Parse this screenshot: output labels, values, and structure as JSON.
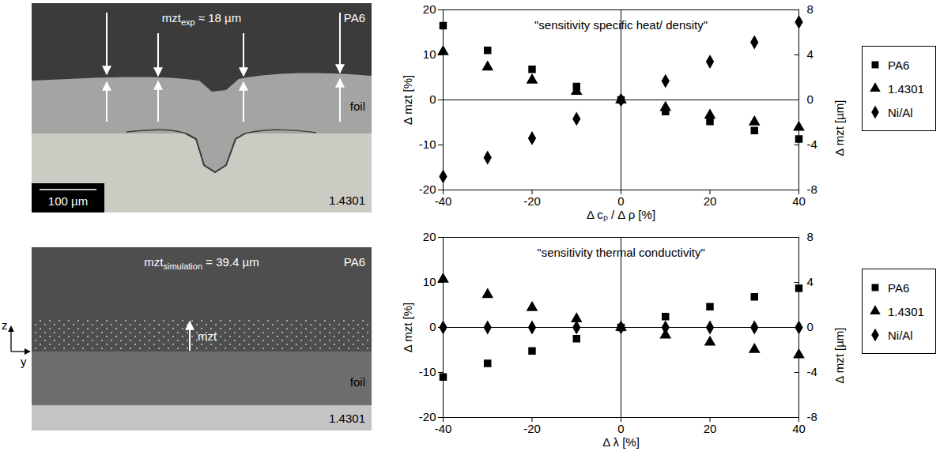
{
  "micrograph": {
    "annotation": {
      "base": "mzt",
      "sub": "exp",
      "rest": " ≈ 18 µm"
    },
    "layers": {
      "top": "PA6",
      "middle": "foil",
      "bottom": "1.4301"
    },
    "scale_bar": "100 µm"
  },
  "schematic": {
    "annotation": {
      "base": "mzt",
      "sub": "simulation",
      "rest": " = 39.4 µm"
    },
    "arrow_label": "mzt",
    "layers": {
      "top": "PA6",
      "middle": "foil",
      "bottom": "1.4301"
    },
    "axes": {
      "vertical": "z",
      "horizontal": "y"
    }
  },
  "chart_data": [
    {
      "type": "scatter",
      "title": "\"sensitivity specific heat/ density\"",
      "xlabel": "Δ cₚ / Δ ρ [%]",
      "ylabel": "Δ mzt [%]",
      "y2label": "Δ mzt [µm]",
      "x": [
        -40,
        -30,
        -20,
        -10,
        0,
        10,
        20,
        30,
        40
      ],
      "series": [
        {
          "name": "PA6",
          "color": "#000000",
          "marker": "square",
          "values": [
            16.5,
            11,
            6.8,
            3,
            0,
            -2.6,
            -4.8,
            -6.8,
            -8.7
          ]
        },
        {
          "name": "1.4301",
          "color": "#000000",
          "marker": "triangle",
          "values": [
            10.7,
            7.3,
            4.4,
            1.9,
            0,
            -1.7,
            -3.4,
            -4.9,
            -6.1
          ]
        },
        {
          "name": "Ni/Al",
          "color": "#000000",
          "marker": "diamond",
          "values": [
            -17,
            -12.8,
            -8.5,
            -4.2,
            0,
            4.2,
            8.5,
            12.8,
            17.3
          ]
        }
      ],
      "xlim": [
        -40,
        40
      ],
      "xticks": [
        -40,
        -20,
        0,
        20,
        40
      ],
      "ylim": [
        -20,
        20
      ],
      "yticks": [
        -20,
        -10,
        0,
        10,
        20
      ],
      "y2lim": [
        -8,
        8
      ],
      "y2ticks": [
        -8,
        -4,
        0,
        4,
        8
      ],
      "grid": false,
      "legend": "right"
    },
    {
      "type": "scatter",
      "title": "\"sensitivity thermal conductivity\"",
      "xlabel": "Δ λ [%]",
      "ylabel": "Δ mzt [%]",
      "y2label": "Δ mzt [µm]",
      "x": [
        -40,
        -30,
        -20,
        -10,
        0,
        10,
        20,
        30,
        40
      ],
      "series": [
        {
          "name": "PA6",
          "color": "#000000",
          "marker": "square",
          "values": [
            -11,
            -8,
            -5.2,
            -2.5,
            0,
            2.4,
            4.6,
            6.8,
            8.7
          ]
        },
        {
          "name": "1.4301",
          "color": "#000000",
          "marker": "triangle",
          "values": [
            10.7,
            7.3,
            4.4,
            1.9,
            0,
            -1.7,
            -3.3,
            -4.9,
            -6.1
          ]
        },
        {
          "name": "Ni/Al",
          "color": "#000000",
          "marker": "diamond",
          "values": [
            0,
            0,
            0,
            0,
            0,
            0,
            0,
            0,
            0
          ]
        }
      ],
      "xlim": [
        -40,
        40
      ],
      "xticks": [
        -40,
        -20,
        0,
        20,
        40
      ],
      "ylim": [
        -20,
        20
      ],
      "yticks": [
        -20,
        -10,
        0,
        10,
        20
      ],
      "y2lim": [
        -8,
        8
      ],
      "y2ticks": [
        -8,
        -4,
        0,
        4,
        8
      ],
      "grid": false,
      "legend": "right"
    }
  ]
}
